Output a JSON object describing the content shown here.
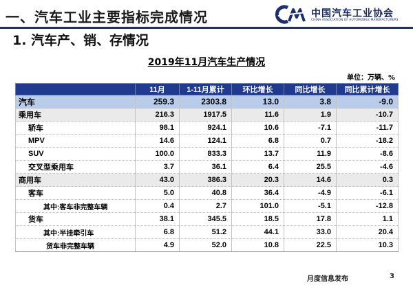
{
  "header": {
    "title": "一、汽车工业主要指标完成情况"
  },
  "logo": {
    "cn_name": "中国汽车工业协会",
    "en_name": "CHINA ASSOCIATION OF AUTOMOBILE MANUFACTURERS",
    "brand_color": "#1e2f6e"
  },
  "section": {
    "title": "1. 汽车产、销、存情况"
  },
  "table": {
    "title": "2019年11月汽车生产情况",
    "unit": "单位：万辆、%",
    "columns": [
      "",
      "11月",
      "1-11月累计",
      "环比增长",
      "同比增长",
      "同比累计增长"
    ],
    "rows": [
      {
        "label": "汽车",
        "values": [
          "259.3",
          "2303.8",
          "13.0",
          "3.8",
          "-9.0"
        ]
      },
      {
        "label": "乘用车",
        "values": [
          "216.3",
          "1917.5",
          "11.6",
          "1.9",
          "-10.7"
        ]
      },
      {
        "label": "轿车",
        "values": [
          "98.1",
          "924.1",
          "10.6",
          "-7.1",
          "-11.7"
        ]
      },
      {
        "label": "MPV",
        "values": [
          "14.6",
          "124.1",
          "6.8",
          "0.7",
          "-18.2"
        ]
      },
      {
        "label": "SUV",
        "values": [
          "100.0",
          "833.3",
          "13.7",
          "11.9",
          "-8.6"
        ]
      },
      {
        "label": "交叉型乘用车",
        "values": [
          "3.7",
          "36.1",
          "6.4",
          "25.5",
          "-4.6"
        ]
      },
      {
        "label": "商用车",
        "values": [
          "43.0",
          "386.3",
          "20.3",
          "14.6",
          "0.3"
        ]
      },
      {
        "label": "客车",
        "values": [
          "5.0",
          "40.8",
          "36.4",
          "-4.9",
          "-6.1"
        ]
      },
      {
        "label": "其中:客车非完整车辆",
        "values": [
          "0.4",
          "2.7",
          "101.0",
          "-5.1",
          "-12.8"
        ]
      },
      {
        "label": "货车",
        "values": [
          "38.1",
          "345.5",
          "18.5",
          "17.8",
          "1.1"
        ]
      },
      {
        "label": "其中:半挂牵引车",
        "values": [
          "6.8",
          "51.2",
          "44.1",
          "33.0",
          "20.4"
        ]
      },
      {
        "label": "货车非完整车辆",
        "values": [
          "4.9",
          "52.0",
          "10.8",
          "22.5",
          "10.3"
        ]
      }
    ]
  },
  "footer": {
    "text": "月度信息发布",
    "page": "3"
  }
}
